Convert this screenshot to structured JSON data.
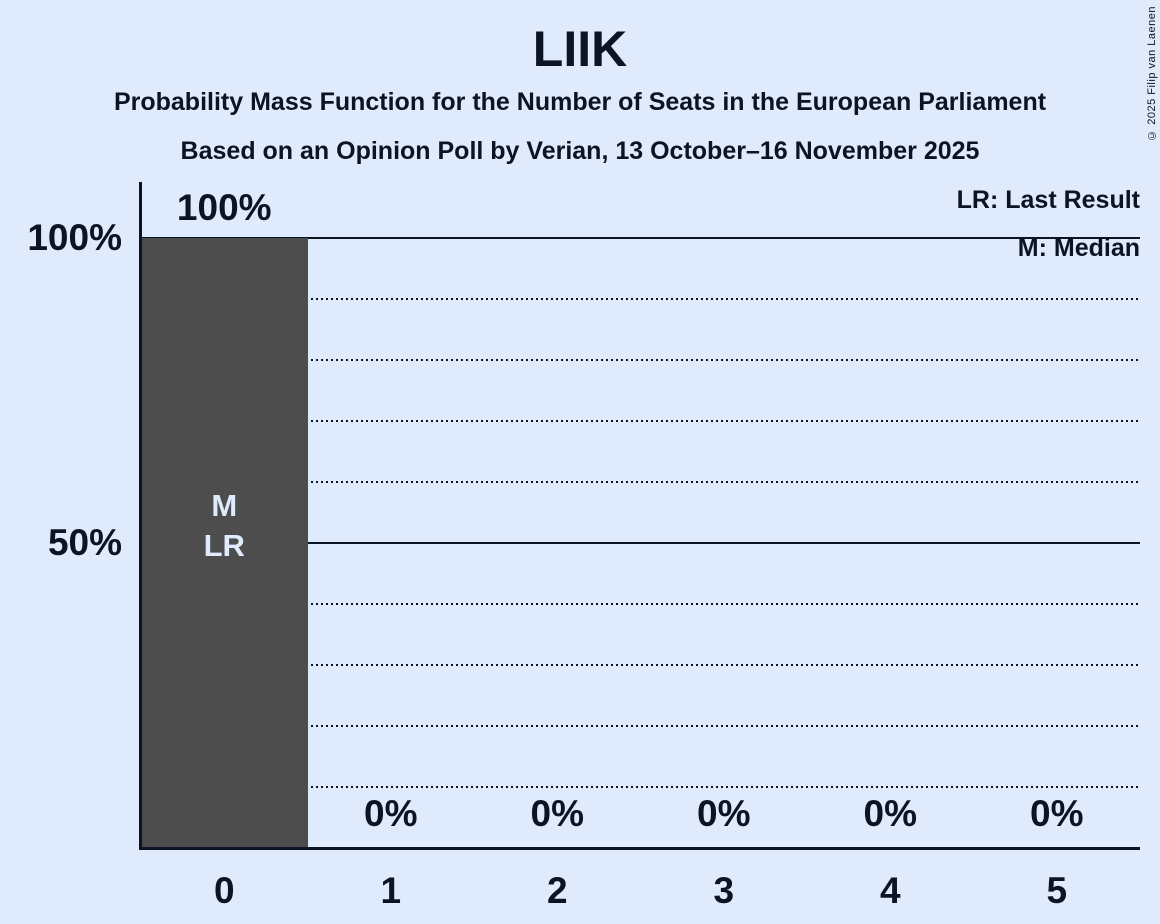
{
  "title": "LIIK",
  "subtitle1": "Probability Mass Function for the Number of Seats in the European Parliament",
  "subtitle2": "Based on an Opinion Poll by Verian, 13 October–16 November 2025",
  "copyright": "© 2025 Filip van Laenen",
  "legend": {
    "last_result": "LR: Last Result",
    "median": "M: Median"
  },
  "colors": {
    "background": "#dfeafc",
    "text": "#0b1423",
    "line": "#0b1423",
    "bar": "#4d4d4d",
    "bar_label": "#dfeafc"
  },
  "chart_data": {
    "type": "bar",
    "title": "LIIK",
    "categories": [
      "0",
      "1",
      "2",
      "3",
      "4",
      "5"
    ],
    "values": [
      100,
      0,
      0,
      0,
      0,
      0
    ],
    "value_labels": [
      "100%",
      "0%",
      "0%",
      "0%",
      "0%",
      "0%"
    ],
    "bar_annotations": [
      {
        "category_index": 0,
        "lines": [
          "M",
          "LR"
        ]
      }
    ],
    "xlabel": "",
    "ylabel": "",
    "ylim": [
      0,
      100
    ],
    "y_tick_labels": [
      {
        "text": "100%",
        "value": 100
      },
      {
        "text": "50%",
        "value": 50
      }
    ],
    "gridlines_solid": [
      100,
      50
    ],
    "gridlines_dotted": [
      90,
      80,
      70,
      60,
      40,
      30,
      20,
      10
    ],
    "grid": "on",
    "legend_position": "top-right"
  }
}
